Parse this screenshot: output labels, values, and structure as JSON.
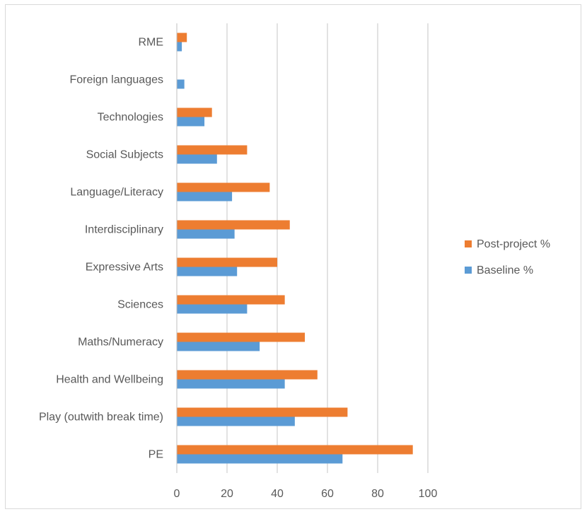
{
  "chart_data": {
    "type": "bar",
    "orientation": "horizontal",
    "categories": [
      "RME",
      "Foreign languages",
      "Technologies",
      "Social Subjects",
      "Language/Literacy",
      "Interdisciplinary",
      "Expressive Arts",
      "Sciences",
      "Maths/Numeracy",
      "Health and Wellbeing",
      "Play (outwith break time)",
      "PE"
    ],
    "series": [
      {
        "name": "Post-project %",
        "color": "#ED7D31",
        "values": [
          4,
          0,
          14,
          28,
          37,
          45,
          40,
          43,
          51,
          56,
          68,
          94
        ]
      },
      {
        "name": "Baseline %",
        "color": "#5B9BD5",
        "values": [
          2,
          3,
          11,
          16,
          22,
          23,
          24,
          28,
          33,
          43,
          47,
          66
        ]
      }
    ],
    "xlim": [
      0,
      100
    ],
    "x_ticks": [
      0,
      20,
      40,
      60,
      80,
      100
    ],
    "grid": "vertical",
    "legend": "right"
  }
}
